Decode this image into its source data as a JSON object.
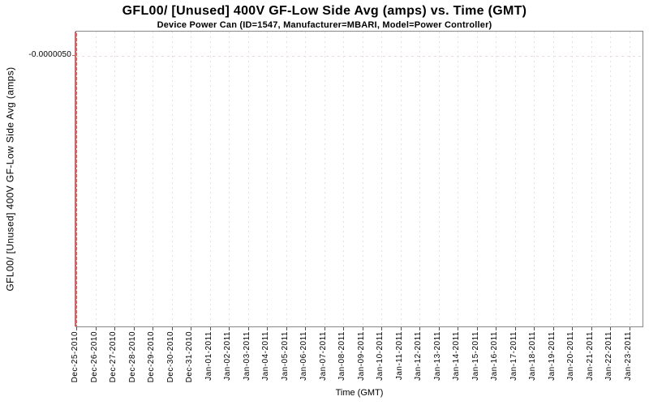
{
  "chart_data": {
    "type": "line",
    "title": "GFL00/ [Unused] 400V GF-Low Side Avg (amps) vs. Time (GMT)",
    "subtitle": "Device Power Can (ID=1547, Manufacturer=MBARI, Model=Power Controller)",
    "xlabel": "Time (GMT)",
    "ylabel": "GFL00/ [Unused] 400V GF-Low Side Avg (amps)",
    "x_tick_labels": [
      "Dec-25-2010",
      "Dec-26-2010",
      "Dec-27-2010",
      "Dec-28-2010",
      "Dec-29-2010",
      "Dec-30-2010",
      "Dec-31-2010",
      "Jan-01-2011",
      "Jan-02-2011",
      "Jan-03-2011",
      "Jan-04-2011",
      "Jan-05-2011",
      "Jan-06-2011",
      "Jan-07-2011",
      "Jan-08-2011",
      "Jan-09-2011",
      "Jan-10-2011",
      "Jan-11-2011",
      "Jan-12-2011",
      "Jan-13-2011",
      "Jan-14-2011",
      "Jan-15-2011",
      "Jan-16-2011",
      "Jan-17-2011",
      "Jan-18-2011",
      "Jan-19-2011",
      "Jan-20-2011",
      "Jan-21-2011",
      "Jan-22-2011",
      "Jan-23-2011"
    ],
    "y_tick_labels": [
      "-0.0000050"
    ],
    "y_tick_value": -5e-06,
    "y_tick_fraction_from_top": 0.082,
    "x_range": [
      "Dec-25-2010",
      "Jan-23-2011"
    ],
    "series": [
      {
        "name": "GFL00/ [Unused] 400V GF-Low Side Avg (amps)",
        "color": "#c66a6a",
        "x": "Dec-25-2010",
        "rendering": "vertical line at the first x tick spanning the entire visible y-range; all samples occur at Dec-25-2010 with values from above -0.0000050 down through the full plotted range"
      }
    ],
    "grid": {
      "vertical_gridlines": true,
      "horizontal_gridlines": true,
      "style": "dotted",
      "vertical_grid_color": "#e2e2e2",
      "horizontal_grid_color": "#ecd9d9"
    },
    "colors": {
      "series": "#c66a6a",
      "plot_border": "#888888",
      "background": "#ffffff",
      "text": "#000000"
    },
    "legend": "none"
  }
}
